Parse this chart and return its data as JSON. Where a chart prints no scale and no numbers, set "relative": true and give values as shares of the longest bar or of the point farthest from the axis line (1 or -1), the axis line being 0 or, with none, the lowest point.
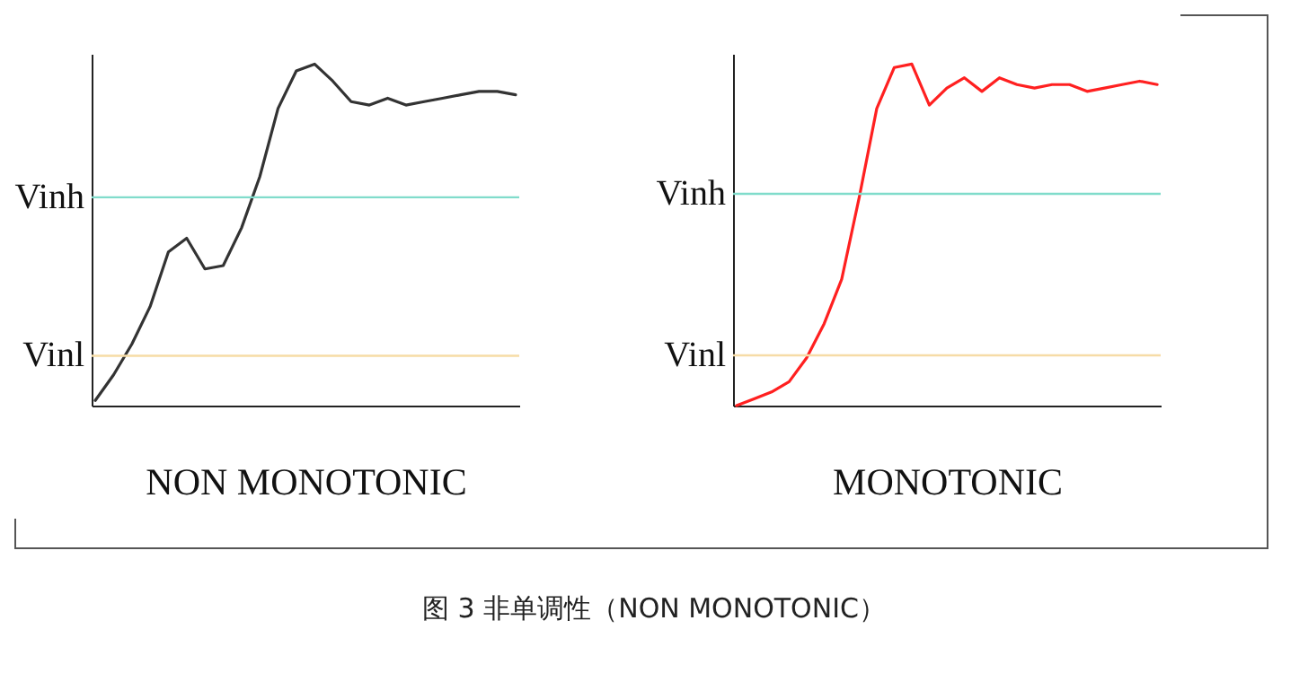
{
  "chart_data": [
    {
      "type": "line",
      "relative": true,
      "xlabel": "NON MONOTONIC",
      "categories": [
        null,
        null,
        null,
        null,
        null,
        null,
        null,
        null,
        null,
        null,
        null,
        null,
        null,
        null,
        null,
        null,
        null,
        null,
        null,
        null,
        null,
        null,
        null,
        null
      ],
      "series": [
        {
          "color": "#333333",
          "values": [
            0.015,
            0.09,
            0.18,
            0.29,
            0.45,
            0.49,
            0.4,
            0.41,
            0.52,
            0.67,
            0.87,
            0.98,
            1,
            0.95,
            0.89,
            0.88,
            0.9,
            0.88,
            0.89,
            0.9,
            0.91,
            0.92,
            0.92,
            0.91
          ]
        }
      ],
      "ref_lines": [
        {
          "axis": "y",
          "value": 0.61,
          "label": "Vinh",
          "color": "#80dccb"
        },
        {
          "axis": "y",
          "value": 0.146,
          "label": "Vinl",
          "color": "#f6dca6"
        }
      ]
    },
    {
      "type": "line",
      "relative": true,
      "xlabel": "MONOTONIC",
      "categories": [
        null,
        null,
        null,
        null,
        null,
        null,
        null,
        null,
        null,
        null,
        null,
        null,
        null,
        null,
        null,
        null,
        null,
        null,
        null,
        null,
        null,
        null,
        null,
        null,
        null
      ],
      "series": [
        {
          "color": "#ff2020",
          "values": [
            0,
            0.02,
            0.04,
            0.07,
            0.14,
            0.24,
            0.37,
            0.61,
            0.87,
            0.99,
            1,
            0.88,
            0.93,
            0.96,
            0.92,
            0.96,
            0.94,
            0.93,
            0.94,
            0.94,
            0.92,
            0.93,
            0.94,
            0.95,
            0.94
          ]
        }
      ],
      "ref_lines": [
        {
          "axis": "y",
          "value": 0.62,
          "label": "Vinh",
          "color": "#80dccb"
        },
        {
          "axis": "y",
          "value": 0.147,
          "label": "Vinl",
          "color": "#f6dca6"
        }
      ],
      "annotations": [
        "图 3 非单调性（NON MONOTONIC）"
      ]
    }
  ]
}
